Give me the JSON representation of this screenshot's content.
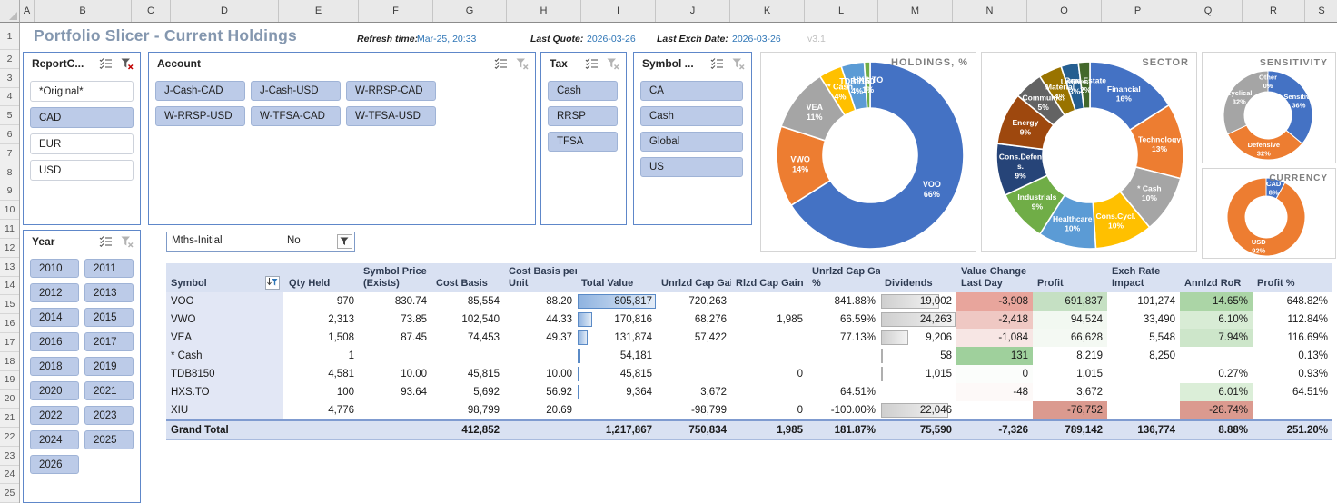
{
  "spreadsheet": {
    "column_letters": [
      "A",
      "B",
      "C",
      "D",
      "E",
      "F",
      "G",
      "H",
      "I",
      "J",
      "K",
      "L",
      "M",
      "N",
      "O",
      "P",
      "Q",
      "R",
      "S"
    ],
    "row_numbers": [
      "1",
      "2",
      "3",
      "4",
      "5",
      "6",
      "7",
      "8",
      "9",
      "10",
      "11",
      "12",
      "13",
      "14",
      "15",
      "16",
      "17",
      "18",
      "19",
      "20",
      "21",
      "22",
      "23",
      "24",
      "25"
    ]
  },
  "header": {
    "title": "Portfolio Slicer - Current Holdings",
    "refresh_label": "Refresh time:",
    "refresh_value": "Mar-25, 20:33",
    "last_quote_label": "Last Quote:",
    "last_quote_value": "2026-03-26",
    "last_exch_label": "Last Exch Date:",
    "last_exch_value": "2026-03-26",
    "version": "v3.1"
  },
  "icons": {
    "multi_select": "checklist-icon",
    "clear_filter": "funnel-x-icon",
    "auto_filter": "funnel-sort-icon",
    "dropdown_filter": "funnel-icon"
  },
  "slicers": [
    {
      "id": "reportcurrency",
      "title": "ReportC...",
      "clear_active": true,
      "items": [
        {
          "label": "*Original*",
          "selected": false
        },
        {
          "label": "CAD",
          "selected": true
        },
        {
          "label": "EUR",
          "selected": false
        },
        {
          "label": "USD",
          "selected": false
        }
      ]
    },
    {
      "id": "account",
      "title": "Account",
      "clear_active": false,
      "items": [
        {
          "label": "J-Cash-CAD",
          "selected": true
        },
        {
          "label": "J-Cash-USD",
          "selected": true
        },
        {
          "label": "W-RRSP-CAD",
          "selected": true
        },
        {
          "label": "W-RRSP-USD",
          "selected": true
        },
        {
          "label": "W-TFSA-CAD",
          "selected": true
        },
        {
          "label": "W-TFSA-USD",
          "selected": true
        }
      ]
    },
    {
      "id": "tax",
      "title": "Tax",
      "clear_active": false,
      "items": [
        {
          "label": "Cash",
          "selected": true
        },
        {
          "label": "RRSP",
          "selected": true
        },
        {
          "label": "TFSA",
          "selected": true
        }
      ]
    },
    {
      "id": "symbolcat",
      "title": "Symbol ...",
      "clear_active": false,
      "items": [
        {
          "label": "CA",
          "selected": true
        },
        {
          "label": "Cash",
          "selected": true
        },
        {
          "label": "Global",
          "selected": true
        },
        {
          "label": "US",
          "selected": true
        }
      ]
    },
    {
      "id": "year",
      "title": "Year",
      "clear_active": false,
      "items": [
        {
          "label": "2010",
          "selected": true
        },
        {
          "label": "2011",
          "selected": true
        },
        {
          "label": "2012",
          "selected": true
        },
        {
          "label": "2013",
          "selected": true
        },
        {
          "label": "2014",
          "selected": true
        },
        {
          "label": "2015",
          "selected": true
        },
        {
          "label": "2016",
          "selected": true
        },
        {
          "label": "2017",
          "selected": true
        },
        {
          "label": "2018",
          "selected": true
        },
        {
          "label": "2019",
          "selected": true
        },
        {
          "label": "2020",
          "selected": true
        },
        {
          "label": "2021",
          "selected": true
        },
        {
          "label": "2022",
          "selected": true
        },
        {
          "label": "2023",
          "selected": true
        },
        {
          "label": "2024",
          "selected": true
        },
        {
          "label": "2025",
          "selected": true
        },
        {
          "label": "2026",
          "selected": true
        }
      ]
    }
  ],
  "filter_row": {
    "label": "Mths-Initial",
    "value": "No"
  },
  "chart_data": [
    {
      "type": "pie",
      "title": "HOLDINGS, %",
      "legend_position": "none",
      "segments": [
        {
          "label": "VOO",
          "pct": 66,
          "color": "#4472C4"
        },
        {
          "label": "VWO",
          "pct": 14,
          "color": "#ED7D31"
        },
        {
          "label": "VEA",
          "pct": 11,
          "color": "#A5A5A5"
        },
        {
          "label": "* Cash",
          "pct": 4,
          "color": "#FFC000"
        },
        {
          "label": "TDB8150",
          "pct": 4,
          "color": "#5B9BD5"
        },
        {
          "label": "HXS.TO",
          "pct": 1,
          "color": "#70AD47"
        }
      ]
    },
    {
      "type": "pie",
      "title": "SECTOR",
      "legend_position": "none",
      "segments": [
        {
          "label": "Financial",
          "pct": 16,
          "color": "#4472C4"
        },
        {
          "label": "Technology",
          "pct": 13,
          "color": "#ED7D31"
        },
        {
          "label": "* Cash",
          "pct": 10,
          "color": "#A5A5A5"
        },
        {
          "label": "Cons.Cycl.",
          "pct": 10,
          "color": "#FFC000"
        },
        {
          "label": "Healthcare",
          "pct": 10,
          "color": "#5B9BD5"
        },
        {
          "label": "Industrials",
          "pct": 9,
          "color": "#70AD47"
        },
        {
          "label": "Cons.Defens.",
          "pct": 9,
          "color": "#264478"
        },
        {
          "label": "Energy",
          "pct": 9,
          "color": "#9E480E"
        },
        {
          "label": "Communic.",
          "pct": 5,
          "color": "#636363"
        },
        {
          "label": "Material",
          "pct": 4,
          "color": "#997300"
        },
        {
          "label": "Utilities",
          "pct": 3,
          "color": "#255E91"
        },
        {
          "label": "Real Estate",
          "pct": 2,
          "color": "#43682B"
        }
      ]
    },
    {
      "type": "pie",
      "title": "SENSITIVITY",
      "legend_position": "none",
      "segments": [
        {
          "label": "Sensitive",
          "pct": 36,
          "color": "#4472C4"
        },
        {
          "label": "Defensive",
          "pct": 32,
          "color": "#ED7D31"
        },
        {
          "label": "Cyclical",
          "pct": 32,
          "color": "#A5A5A5"
        },
        {
          "label": "Other",
          "pct": 0,
          "color": "#FFC000"
        }
      ]
    },
    {
      "type": "pie",
      "title": "CURRENCY",
      "legend_position": "none",
      "segments": [
        {
          "label": "CAD",
          "pct": 8,
          "color": "#4472C4"
        },
        {
          "label": "USD",
          "pct": 92,
          "color": "#ED7D31"
        }
      ]
    }
  ],
  "table": {
    "columns": [
      {
        "line1": "",
        "line2": "Symbol",
        "filter": true
      },
      {
        "line1": "",
        "line2": "Qty Held"
      },
      {
        "line1": "Symbol Price",
        "line2": "(Exists)"
      },
      {
        "line1": "",
        "line2": "Cost Basis"
      },
      {
        "line1": "Cost Basis per",
        "line2": "Unit"
      },
      {
        "line1": "",
        "line2": "Total Value"
      },
      {
        "line1": "",
        "line2": "Unrlzd Cap Gain"
      },
      {
        "line1": "",
        "line2": "Rlzd Cap Gain"
      },
      {
        "line1": "Unrlzd Cap Gain",
        "line2": "%"
      },
      {
        "line1": "",
        "line2": "Dividends"
      },
      {
        "line1": "Value Change",
        "line2": "Last Day"
      },
      {
        "line1": "",
        "line2": "Profit"
      },
      {
        "line1": "Exch Rate",
        "line2": "Impact"
      },
      {
        "line1": "",
        "line2": "Annlzd RoR"
      },
      {
        "line1": "",
        "line2": "Profit %"
      }
    ],
    "rows": [
      {
        "cells": [
          "VOO",
          "970",
          "830.74",
          "85,554",
          "88.20",
          {
            "v": "805,817",
            "bar": "blue",
            "barPct": 100
          },
          "720,263",
          "",
          "841.88%",
          {
            "v": "19,002",
            "bar": "gray",
            "barPct": 78
          },
          {
            "v": "-3,908",
            "bg": "#E8A59C"
          },
          {
            "v": "691,837",
            "bg": "#C5E0C3"
          },
          "101,274",
          {
            "v": "14.65%",
            "bg": "#ABD5A6"
          },
          "648.82%"
        ]
      },
      {
        "cells": [
          "VWO",
          "2,313",
          "73.85",
          "102,540",
          "44.33",
          {
            "v": "170,816",
            "bar": "blue",
            "barPct": 20
          },
          "68,276",
          "1,985",
          "66.59%",
          {
            "v": "24,263",
            "bar": "gray",
            "barPct": 100
          },
          {
            "v": "-2,418",
            "bg": "#EFC8C3"
          },
          {
            "v": "94,524",
            "bg": "#F2F8F1"
          },
          "33,490",
          {
            "v": "6.10%",
            "bg": "#D8ECD5"
          },
          "112.84%"
        ]
      },
      {
        "cells": [
          "VEA",
          "1,508",
          "87.45",
          "74,453",
          "49.37",
          {
            "v": "131,874",
            "bar": "blue",
            "barPct": 15
          },
          "57,422",
          "",
          "77.13%",
          {
            "v": "9,206",
            "bar": "gray",
            "barPct": 38
          },
          {
            "v": "-1,084",
            "bg": "#F7E6E4"
          },
          {
            "v": "66,628",
            "bg": "#F4F9F3"
          },
          "5,548",
          {
            "v": "7.94%",
            "bg": "#CDE6CA"
          },
          "116.69%"
        ]
      },
      {
        "cells": [
          "* Cash",
          "1",
          "",
          "",
          "",
          {
            "v": "54,181",
            "bar": "blue",
            "barPct": 6
          },
          "",
          "",
          "",
          {
            "v": "58",
            "bar": "gray",
            "barPct": 2
          },
          {
            "v": "131",
            "bg": "#9FD09C"
          },
          "8,219",
          "8,250",
          "",
          "0.13%"
        ]
      },
      {
        "cells": [
          "TDB8150",
          "4,581",
          "10.00",
          "45,815",
          "10.00",
          {
            "v": "45,815",
            "bar": "blue",
            "barPct": 5
          },
          "",
          "0",
          "",
          {
            "v": "1,015",
            "bar": "gray",
            "barPct": 4
          },
          {
            "v": "0",
            "bg": "#FBFDFB"
          },
          "1,015",
          "",
          "0.27%",
          "0.93%"
        ]
      },
      {
        "cells": [
          "HXS.TO",
          "100",
          "93.64",
          "5,692",
          "56.92",
          {
            "v": "9,364",
            "bar": "blue",
            "barPct": 1
          },
          "3,672",
          "",
          "64.51%",
          "",
          {
            "v": "-48",
            "bg": "#FDF9F8"
          },
          "3,672",
          "",
          {
            "v": "6.01%",
            "bg": "#DBEED8"
          },
          "64.51%"
        ]
      },
      {
        "cells": [
          "XIU",
          "4,776",
          "",
          "98,799",
          "20.69",
          "",
          "-98,799",
          "0",
          "-100.00%",
          {
            "v": "22,046",
            "bar": "gray",
            "barPct": 91
          },
          "",
          {
            "v": "-76,752",
            "bg": "#DB9A8F"
          },
          "",
          {
            "v": "-28.74%",
            "bg": "#DB9A8F"
          },
          ""
        ]
      }
    ],
    "grand_total": {
      "cells": [
        "Grand Total",
        "",
        "",
        "412,852",
        "",
        "1,217,867",
        "750,834",
        "1,985",
        "181.87%",
        "75,590",
        "-7,326",
        "789,142",
        "136,774",
        "8.88%",
        "251.20%"
      ]
    }
  }
}
